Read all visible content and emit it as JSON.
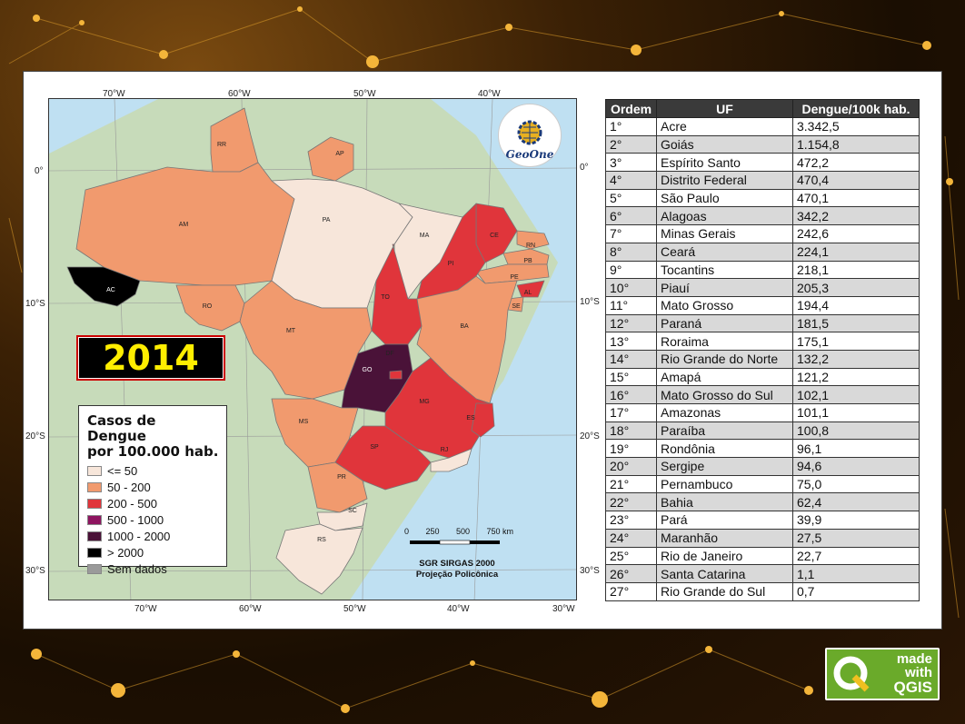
{
  "year": "2014",
  "legend": {
    "title_line1": "Casos de Dengue",
    "title_line2": "por 100.000 hab.",
    "classes": [
      {
        "label": "<= 50",
        "color": "#f7e6da"
      },
      {
        "label": "50 - 200",
        "color": "#f19a6e"
      },
      {
        "label": "200 - 500",
        "color": "#e0353b"
      },
      {
        "label": "500 - 1000",
        "color": "#8e1460"
      },
      {
        "label": "1000 - 2000",
        "color": "#4a1238"
      },
      {
        "label": "> 2000",
        "color": "#000000"
      },
      {
        "label": "Sem dados",
        "color": "#9a9a9a"
      }
    ]
  },
  "logo": {
    "text": "GeoOne"
  },
  "graticule": {
    "top": [
      "70°W",
      "60°W",
      "50°W",
      "40°W"
    ],
    "bottom": [
      "70°W",
      "60°W",
      "50°W",
      "40°W",
      "30°W"
    ],
    "left": [
      "0°",
      "10°S",
      "20°S",
      "30°S"
    ],
    "right": [
      "0°",
      "10°S",
      "20°S",
      "30°S"
    ]
  },
  "scale": {
    "labels": [
      "0",
      "250",
      "500",
      "750 km"
    ],
    "crs_line1": "SGR SIRGAS 2000",
    "crs_line2": "Projeção Policônica"
  },
  "states": {
    "RR": "RR",
    "AP": "AP",
    "AM": "AM",
    "PA": "PA",
    "MA": "MA",
    "CE": "CE",
    "RN": "RN",
    "PB": "PB",
    "PE": "PE",
    "AL": "AL",
    "SE": "SE",
    "PI": "PI",
    "AC": "AC",
    "RO": "RO",
    "TO": "TO",
    "BA": "BA",
    "MT": "MT",
    "DF": "DF",
    "GO": "GO",
    "MG": "MG",
    "ES": "ES",
    "MS": "MS",
    "SP": "SP",
    "RJ": "RJ",
    "PR": "PR",
    "SC": "SC",
    "RS": "RS"
  },
  "table": {
    "headers": [
      "Ordem",
      "UF",
      "Dengue/100k hab."
    ],
    "rows": [
      [
        "1°",
        "Acre",
        "3.342,5"
      ],
      [
        "2°",
        "Goiás",
        "1.154,8"
      ],
      [
        "3°",
        "Espírito Santo",
        "472,2"
      ],
      [
        "4°",
        "Distrito Federal",
        "470,4"
      ],
      [
        "5°",
        "São Paulo",
        "470,1"
      ],
      [
        "6°",
        "Alagoas",
        "342,2"
      ],
      [
        "7°",
        "Minas Gerais",
        "242,6"
      ],
      [
        "8°",
        "Ceará",
        "224,1"
      ],
      [
        "9°",
        "Tocantins",
        "218,1"
      ],
      [
        "10°",
        "Piauí",
        "205,3"
      ],
      [
        "11°",
        "Mato Grosso",
        "194,4"
      ],
      [
        "12°",
        "Paraná",
        "181,5"
      ],
      [
        "13°",
        "Roraima",
        "175,1"
      ],
      [
        "14°",
        "Rio Grande do Norte",
        "132,2"
      ],
      [
        "15°",
        "Amapá",
        "121,2"
      ],
      [
        "16°",
        "Mato Grosso do Sul",
        "102,1"
      ],
      [
        "17°",
        "Amazonas",
        "101,1"
      ],
      [
        "18°",
        "Paraíba",
        "100,8"
      ],
      [
        "19°",
        "Rondônia",
        "96,1"
      ],
      [
        "20°",
        "Sergipe",
        "94,6"
      ],
      [
        "21°",
        "Pernambuco",
        "75,0"
      ],
      [
        "22°",
        "Bahia",
        "62,4"
      ],
      [
        "23°",
        "Pará",
        "39,9"
      ],
      [
        "24°",
        "Maranhão",
        "27,5"
      ],
      [
        "25°",
        "Rio de Janeiro",
        "22,7"
      ],
      [
        "26°",
        "Santa Catarina",
        "1,1"
      ],
      [
        "27°",
        "Rio Grande do Sul",
        "0,7"
      ]
    ]
  },
  "badge": {
    "line1": "made",
    "line2": "with",
    "line3": "QGIS"
  }
}
